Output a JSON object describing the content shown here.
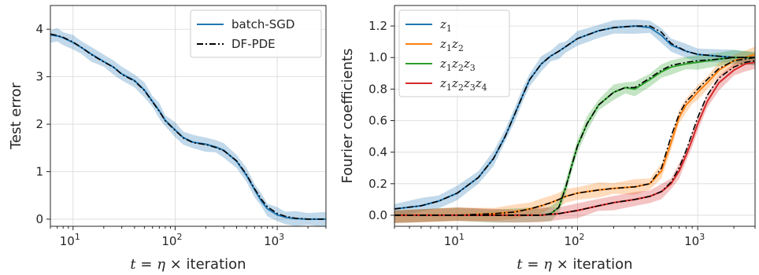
{
  "chart_data": [
    {
      "type": "line",
      "xlabel": "t = η × iteration",
      "ylabel": "Test error",
      "xscale": "log",
      "xlim": [
        6,
        3000
      ],
      "ylim": [
        -0.15,
        4.5
      ],
      "x_ticks": [
        10,
        100,
        1000
      ],
      "x_tick_labels": [
        "10",
        "10",
        "10"
      ],
      "x_tick_exponents": [
        "1",
        "2",
        "3"
      ],
      "y_ticks": [
        0,
        1,
        2,
        3,
        4
      ],
      "y_tick_labels": [
        "0",
        "1",
        "2",
        "3",
        "4"
      ],
      "grid": true,
      "legend": "top-right",
      "series": [
        {
          "name": "batch-SGD",
          "color": "#1f77b4",
          "style": "solid",
          "band": true,
          "x": [
            6,
            7,
            8,
            10,
            12,
            15,
            20,
            25,
            30,
            40,
            50,
            60,
            70,
            80,
            100,
            120,
            150,
            200,
            250,
            300,
            400,
            500,
            600,
            700,
            800,
            1000,
            1200,
            1500,
            2000,
            3000
          ],
          "y": [
            3.88,
            3.86,
            3.82,
            3.72,
            3.62,
            3.48,
            3.32,
            3.2,
            3.06,
            2.92,
            2.72,
            2.48,
            2.28,
            2.08,
            1.88,
            1.72,
            1.62,
            1.58,
            1.52,
            1.45,
            1.22,
            0.92,
            0.62,
            0.38,
            0.22,
            0.09,
            0.04,
            0.01,
            0.0,
            0.0
          ]
        },
        {
          "name": "DF-PDE",
          "color": "#000000",
          "style": "dashdot",
          "band": false,
          "x": [
            6,
            7,
            8,
            10,
            12,
            15,
            20,
            25,
            30,
            40,
            50,
            60,
            70,
            80,
            100,
            120,
            150,
            200,
            250,
            300,
            400,
            500,
            600,
            700,
            800,
            1000,
            1200,
            1500,
            2000,
            3000
          ],
          "y": [
            3.9,
            3.87,
            3.83,
            3.73,
            3.62,
            3.47,
            3.31,
            3.2,
            3.05,
            2.91,
            2.71,
            2.47,
            2.27,
            2.07,
            1.87,
            1.71,
            1.61,
            1.57,
            1.51,
            1.44,
            1.23,
            0.94,
            0.64,
            0.42,
            0.26,
            0.12,
            0.06,
            0.02,
            0.0,
            0.0
          ]
        }
      ]
    },
    {
      "type": "line",
      "xlabel": "t = η × iteration",
      "ylabel": "Fourier coefficients",
      "xscale": "log",
      "xlim": [
        3,
        3000
      ],
      "ylim": [
        -0.07,
        1.33
      ],
      "x_ticks": [
        10,
        100,
        1000
      ],
      "x_tick_labels": [
        "10",
        "10",
        "10"
      ],
      "x_tick_exponents": [
        "1",
        "2",
        "3"
      ],
      "y_ticks": [
        0,
        0.2,
        0.4,
        0.6,
        0.8,
        1.0,
        1.2
      ],
      "y_tick_labels": [
        "0.0",
        "0.2",
        "0.4",
        "0.6",
        "0.8",
        "1.0",
        "1.2"
      ],
      "grid": true,
      "legend": "top-left",
      "series": [
        {
          "name": "z1",
          "label_base": [
            "z"
          ],
          "label_sub": [
            "1"
          ],
          "color": "#1f77b4",
          "style": "solid",
          "band": true,
          "x": [
            3,
            5,
            7,
            10,
            15,
            20,
            25,
            30,
            35,
            40,
            50,
            60,
            70,
            80,
            100,
            150,
            200,
            300,
            400,
            500,
            600,
            800,
            1000,
            2000,
            3000
          ],
          "y": [
            0.04,
            0.06,
            0.09,
            0.14,
            0.24,
            0.36,
            0.5,
            0.64,
            0.76,
            0.86,
            0.96,
            1.01,
            1.04,
            1.07,
            1.12,
            1.17,
            1.19,
            1.2,
            1.19,
            1.14,
            1.08,
            1.04,
            1.02,
            1.0,
            1.0
          ]
        },
        {
          "name": "z1z2",
          "label_base": [
            "z",
            "z"
          ],
          "label_sub": [
            "1",
            "2"
          ],
          "color": "#ff7f0e",
          "style": "solid",
          "band": true,
          "x": [
            3,
            10,
            20,
            30,
            40,
            50,
            60,
            70,
            80,
            100,
            150,
            200,
            300,
            400,
            500,
            600,
            700,
            800,
            900,
            1000,
            1200,
            1500,
            2000,
            3000
          ],
          "y": [
            0.0,
            0.0,
            0.01,
            0.02,
            0.04,
            0.06,
            0.08,
            0.1,
            0.12,
            0.14,
            0.16,
            0.17,
            0.18,
            0.2,
            0.28,
            0.46,
            0.62,
            0.7,
            0.74,
            0.78,
            0.84,
            0.92,
            0.98,
            1.02
          ]
        },
        {
          "name": "z1z2z3",
          "label_base": [
            "z",
            "z",
            "z"
          ],
          "label_sub": [
            "1",
            "2",
            "3"
          ],
          "color": "#2ca02c",
          "style": "solid",
          "band": true,
          "x": [
            3,
            10,
            20,
            40,
            50,
            60,
            70,
            80,
            90,
            100,
            120,
            150,
            200,
            250,
            300,
            400,
            500,
            600,
            800,
            1000,
            1500,
            2000,
            3000
          ],
          "y": [
            0.0,
            0.0,
            0.0,
            0.0,
            0.0,
            0.01,
            0.05,
            0.18,
            0.32,
            0.44,
            0.58,
            0.7,
            0.78,
            0.81,
            0.8,
            0.86,
            0.91,
            0.94,
            0.96,
            0.97,
            0.99,
            1.0,
            1.0
          ]
        },
        {
          "name": "z1z2z3z4",
          "label_base": [
            "z",
            "z",
            "z",
            "z"
          ],
          "label_sub": [
            "1",
            "2",
            "3",
            "4"
          ],
          "color": "#d62728",
          "style": "solid",
          "band": true,
          "x": [
            3,
            10,
            30,
            50,
            70,
            100,
            150,
            200,
            300,
            400,
            500,
            600,
            700,
            800,
            900,
            1000,
            1200,
            1500,
            2000,
            2500,
            3000
          ],
          "y": [
            0.0,
            0.0,
            0.0,
            0.0,
            0.01,
            0.03,
            0.06,
            0.08,
            0.1,
            0.12,
            0.15,
            0.2,
            0.28,
            0.38,
            0.48,
            0.58,
            0.72,
            0.84,
            0.92,
            0.96,
            0.97
          ]
        },
        {
          "name": "DF-PDE z1",
          "color": "#000000",
          "style": "dashdot",
          "band": false,
          "x": [
            3,
            5,
            7,
            10,
            15,
            20,
            25,
            30,
            35,
            40,
            50,
            60,
            70,
            80,
            100,
            150,
            200,
            300,
            400,
            500,
            600,
            800,
            1000,
            2000,
            3000
          ],
          "y": [
            0.04,
            0.06,
            0.09,
            0.14,
            0.24,
            0.36,
            0.5,
            0.64,
            0.76,
            0.86,
            0.96,
            1.01,
            1.04,
            1.07,
            1.12,
            1.17,
            1.19,
            1.2,
            1.2,
            1.16,
            1.09,
            1.04,
            1.02,
            1.0,
            1.0
          ]
        },
        {
          "name": "DF-PDE z1z2",
          "color": "#000000",
          "style": "dashdot",
          "band": false,
          "x": [
            3,
            10,
            20,
            30,
            40,
            50,
            60,
            70,
            80,
            100,
            150,
            200,
            300,
            400,
            500,
            600,
            700,
            800,
            900,
            1000,
            1200,
            1500,
            2000,
            3000
          ],
          "y": [
            0.0,
            0.0,
            0.01,
            0.02,
            0.04,
            0.06,
            0.08,
            0.1,
            0.12,
            0.14,
            0.16,
            0.17,
            0.18,
            0.2,
            0.3,
            0.5,
            0.64,
            0.72,
            0.76,
            0.8,
            0.86,
            0.93,
            0.98,
            1.0
          ]
        },
        {
          "name": "DF-PDE z1z2z3",
          "color": "#000000",
          "style": "dashdot",
          "band": false,
          "x": [
            3,
            10,
            20,
            40,
            50,
            60,
            70,
            80,
            90,
            100,
            120,
            150,
            200,
            250,
            300,
            400,
            500,
            600,
            800,
            1000,
            1500,
            2000,
            3000
          ],
          "y": [
            0.0,
            0.0,
            0.0,
            0.0,
            0.0,
            0.01,
            0.05,
            0.18,
            0.32,
            0.44,
            0.58,
            0.7,
            0.78,
            0.81,
            0.81,
            0.87,
            0.92,
            0.95,
            0.97,
            0.98,
            0.99,
            1.0,
            1.0
          ]
        },
        {
          "name": "DF-PDE z1z2z3z4",
          "color": "#000000",
          "style": "dashdot",
          "band": false,
          "x": [
            3,
            10,
            30,
            50,
            70,
            100,
            150,
            200,
            300,
            400,
            500,
            600,
            700,
            800,
            900,
            1000,
            1200,
            1500,
            2000,
            2500,
            3000
          ],
          "y": [
            0.0,
            0.0,
            0.0,
            0.0,
            0.01,
            0.03,
            0.06,
            0.08,
            0.1,
            0.12,
            0.15,
            0.21,
            0.3,
            0.41,
            0.52,
            0.62,
            0.76,
            0.87,
            0.94,
            0.97,
            0.98
          ]
        }
      ]
    }
  ]
}
